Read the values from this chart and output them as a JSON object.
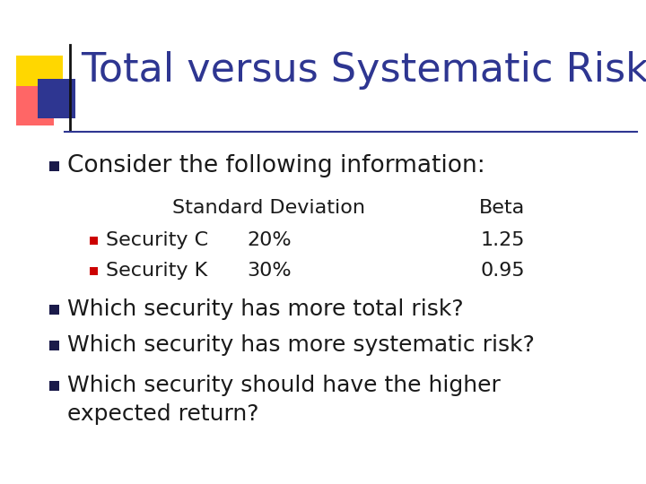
{
  "title": "Total versus Systematic Risk",
  "title_color": "#2E3691",
  "title_fontsize": 32,
  "bg_color": "#FFFFFF",
  "text_color": "#1a1a1a",
  "bullet1": "Consider the following information:",
  "bullet1_fontsize": 19,
  "table_header_std": "Standard Deviation",
  "table_header_beta": "Beta",
  "table_row1": [
    "Security C",
    "20%",
    "1.25"
  ],
  "table_row2": [
    "Security K",
    "30%",
    "0.95"
  ],
  "sub_bullet_color": "#CC0000",
  "main_bullet_color": "#1a1a4a",
  "bullet2": "Which security has more total risk?",
  "bullet3": "Which security has more systematic risk?",
  "bullet4a": "Which security should have the higher",
  "bullet4b": "expected return?",
  "body_fontsize": 18,
  "table_fontsize": 16,
  "header_color_yellow": "#FFD700",
  "header_color_red": "#FF6666",
  "header_color_blue": "#2E3691",
  "line_color": "#2E3691"
}
